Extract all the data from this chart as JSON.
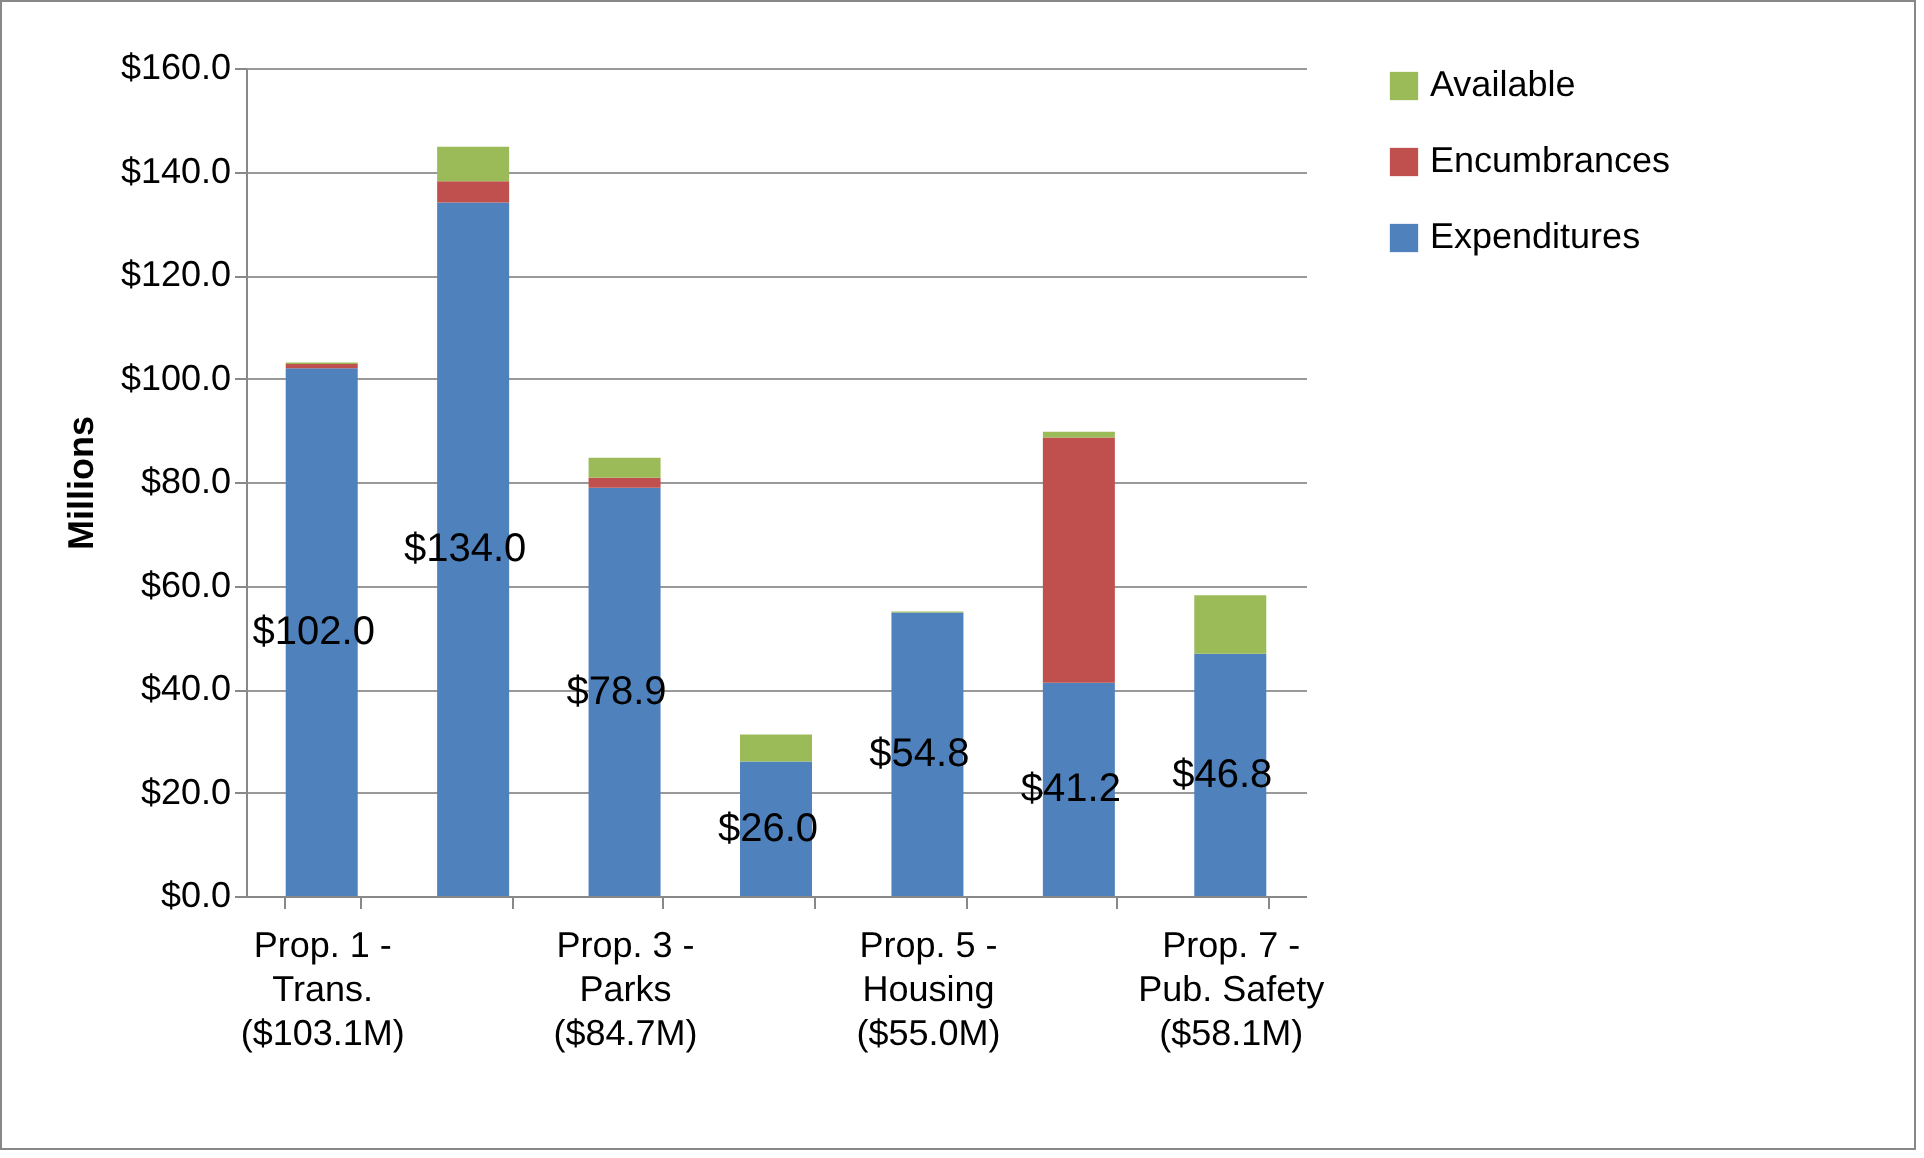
{
  "chart_data": {
    "type": "bar",
    "stacked": true,
    "ylabel": "Millions",
    "categories": [
      "Prop. 1 - Trans. ($103.1M)",
      null,
      "Prop. 3 - Parks ($84.7M)",
      null,
      "Prop. 5 - Housing ($55.0M)",
      null,
      "Prop. 7 - Pub. Safety ($58.1M)"
    ],
    "series": [
      {
        "name": "Expenditures",
        "color": "#4f81bd",
        "values": [
          102.0,
          134.0,
          78.9,
          26.0,
          54.8,
          41.2,
          46.8
        ],
        "value_labels": [
          "$102.0",
          "$134.0",
          "$78.9",
          "$26.0",
          "$54.8",
          "$41.2",
          "$46.8"
        ]
      },
      {
        "name": "Encumbrances",
        "color": "#c0504d",
        "values": [
          0.8,
          4.1,
          1.9,
          0,
          0,
          47.4,
          0
        ]
      },
      {
        "name": "Available",
        "color": "#9bbb59",
        "values": [
          0.3,
          6.7,
          3.9,
          5.2,
          0.2,
          1.1,
          11.3
        ]
      }
    ],
    "ylim": [
      0,
      160
    ],
    "yticks": [
      {
        "value": 0,
        "label": "$0.0"
      },
      {
        "value": 20,
        "label": "$20.0"
      },
      {
        "value": 40,
        "label": "$40.0"
      },
      {
        "value": 60,
        "label": "$60.0"
      },
      {
        "value": 80,
        "label": "$80.0"
      },
      {
        "value": 100,
        "label": "$100.0"
      },
      {
        "value": 120,
        "label": "$120.0"
      },
      {
        "value": 140,
        "label": "$140.0"
      },
      {
        "value": 160,
        "label": "$160.0"
      }
    ],
    "grid": "y",
    "legend": "right"
  }
}
